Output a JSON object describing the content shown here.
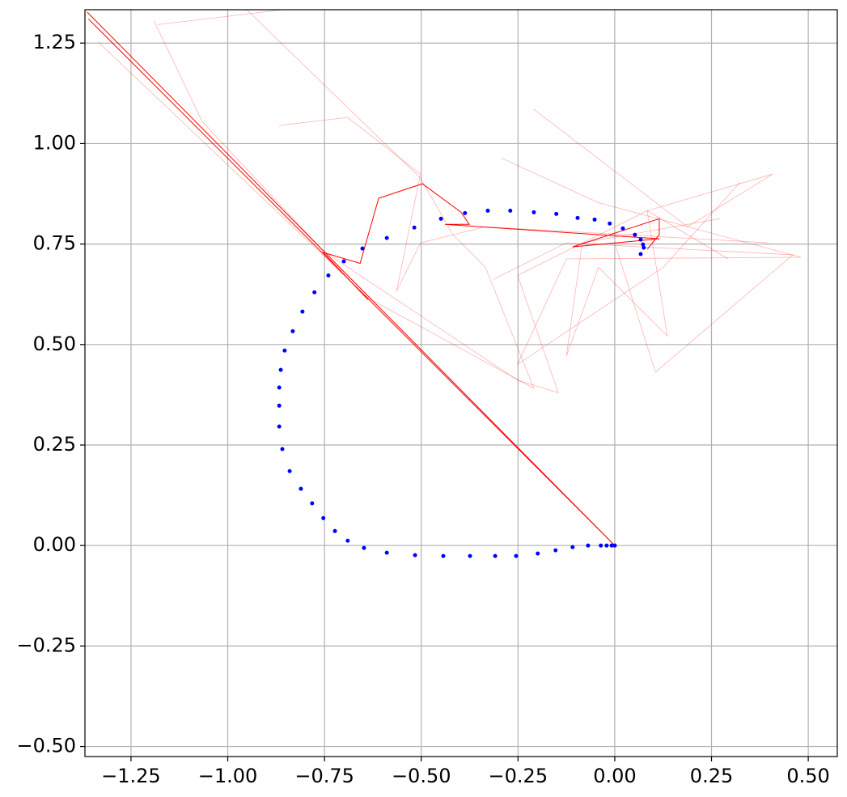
{
  "chart_data": {
    "type": "scatter",
    "xlim": [
      -1.369,
      0.575
    ],
    "ylim": [
      -0.525,
      1.333
    ],
    "grid": true,
    "xticks": [
      {
        "value": -1.25,
        "label": "−1.25"
      },
      {
        "value": -1.0,
        "label": "−1.00"
      },
      {
        "value": -0.75,
        "label": "−0.75"
      },
      {
        "value": -0.5,
        "label": "−0.50"
      },
      {
        "value": -0.25,
        "label": "−0.25"
      },
      {
        "value": 0,
        "label": "0.00"
      },
      {
        "value": 0.25,
        "label": "0.25"
      },
      {
        "value": 0.5,
        "label": "0.50"
      }
    ],
    "yticks": [
      {
        "value": -0.5,
        "label": "−0.50"
      },
      {
        "value": -0.25,
        "label": "−0.25"
      },
      {
        "value": 0,
        "label": "0.00"
      },
      {
        "value": 0.25,
        "label": "0.25"
      },
      {
        "value": 0.5,
        "label": "0.50"
      },
      {
        "value": 0.75,
        "label": "0.75"
      },
      {
        "value": 1.0,
        "label": "1.00"
      },
      {
        "value": 1.25,
        "label": "1.25"
      }
    ],
    "points": {
      "color": "#0000ff",
      "x": [
        0.0,
        -0.008,
        -0.021,
        -0.036,
        -0.069,
        -0.109,
        -0.153,
        -0.199,
        -0.255,
        -0.309,
        -0.374,
        -0.443,
        -0.516,
        -0.589,
        -0.648,
        -0.69,
        -0.723,
        -0.753,
        -0.782,
        -0.811,
        -0.84,
        -0.859,
        -0.867,
        -0.867,
        -0.867,
        -0.863,
        -0.853,
        -0.832,
        -0.807,
        -0.776,
        -0.74,
        -0.7,
        -0.652,
        -0.589,
        -0.518,
        -0.449,
        -0.387,
        -0.328,
        -0.27,
        -0.209,
        -0.151,
        -0.096,
        -0.052,
        -0.013,
        0.021,
        0.052,
        0.067,
        0.073,
        0.075,
        0.067
      ],
      "y": [
        0.0,
        0.0,
        0.0,
        0.0,
        0.0,
        -0.004,
        -0.012,
        -0.02,
        -0.026,
        -0.026,
        -0.026,
        -0.026,
        -0.024,
        -0.018,
        -0.006,
        0.012,
        0.036,
        0.068,
        0.105,
        0.141,
        0.185,
        0.24,
        0.296,
        0.348,
        0.393,
        0.437,
        0.485,
        0.533,
        0.582,
        0.63,
        0.672,
        0.707,
        0.739,
        0.765,
        0.791,
        0.813,
        0.827,
        0.833,
        0.833,
        0.829,
        0.825,
        0.815,
        0.811,
        0.801,
        0.789,
        0.773,
        0.761,
        0.749,
        0.741,
        0.725
      ]
    },
    "lines": [
      {
        "color": "#ff0000",
        "alpha": 1,
        "x": [
          0.0,
          -1.363
        ],
        "y": [
          0.0,
          1.327
        ]
      },
      {
        "color": "#ff0000",
        "alpha": 1,
        "x": [
          0.0,
          -1.36
        ],
        "y": [
          0.0,
          1.31
        ]
      },
      {
        "color": "#ff0000",
        "alpha": 1,
        "x": [
          -0.638,
          -0.753,
          -0.658,
          -0.61,
          -0.497,
          -0.397,
          -0.376,
          -0.439,
          0.115,
          -0.109,
          0.115,
          0.115,
          0.084
        ],
        "y": [
          0.612,
          0.729,
          0.702,
          0.864,
          0.9,
          0.829,
          0.799,
          0.799,
          0.763,
          0.743,
          0.813,
          0.773,
          0.737
        ]
      },
      {
        "color": "#ff0000",
        "alpha": 0.3,
        "x": [
          -1.334,
          -0.638,
          -0.209,
          -0.334,
          -0.418,
          -0.502,
          -0.951
        ],
        "y": [
          1.252,
          0.616,
          0.391,
          0.692,
          0.773,
          0.914,
          1.333
        ]
      },
      {
        "color": "#ff0000",
        "alpha": 0.3,
        "x": [
          -1.191,
          -1.066,
          -0.753,
          -0.251,
          -0.146,
          -0.251,
          0.084,
          0.293
        ],
        "y": [
          1.306,
          1.055,
          0.733,
          0.411,
          0.38,
          0.672,
          0.833,
          0.713
        ]
      },
      {
        "color": "#ff0000",
        "alpha": 0.3,
        "x": [
          -0.867,
          -0.69,
          -0.502,
          -0.564,
          -0.502,
          -0.334,
          0.397
        ],
        "y": [
          1.045,
          1.065,
          0.924,
          0.632,
          0.753,
          0.793,
          0.753
        ]
      },
      {
        "color": "#ff0000",
        "alpha": 0.3,
        "x": [
          -0.293,
          -0.042,
          0.481,
          -0.125,
          -0.251,
          0.125,
          0.324
        ],
        "y": [
          0.964,
          0.853,
          0.717,
          0.713,
          0.451,
          0.692,
          0.904
        ]
      },
      {
        "color": "#ff0000",
        "alpha": 0.3,
        "x": [
          -0.209,
          0.188,
          0.408,
          0.084,
          0.136,
          -0.042,
          -0.125,
          -0.084,
          0.272
        ],
        "y": [
          1.085,
          0.793,
          0.924,
          0.833,
          0.521,
          0.692,
          0.471,
          0.753,
          0.813
        ]
      },
      {
        "color": "#ff0000",
        "alpha": 0.3,
        "x": [
          -1.181,
          -0.857
        ],
        "y": [
          1.296,
          1.333
        ]
      },
      {
        "color": "#ff0000",
        "alpha": 0.3,
        "x": [
          -0.314,
          -0.125,
          0.46,
          0.105,
          0.0
        ],
        "y": [
          0.662,
          0.753,
          0.723,
          0.431,
          0.753
        ]
      }
    ]
  }
}
